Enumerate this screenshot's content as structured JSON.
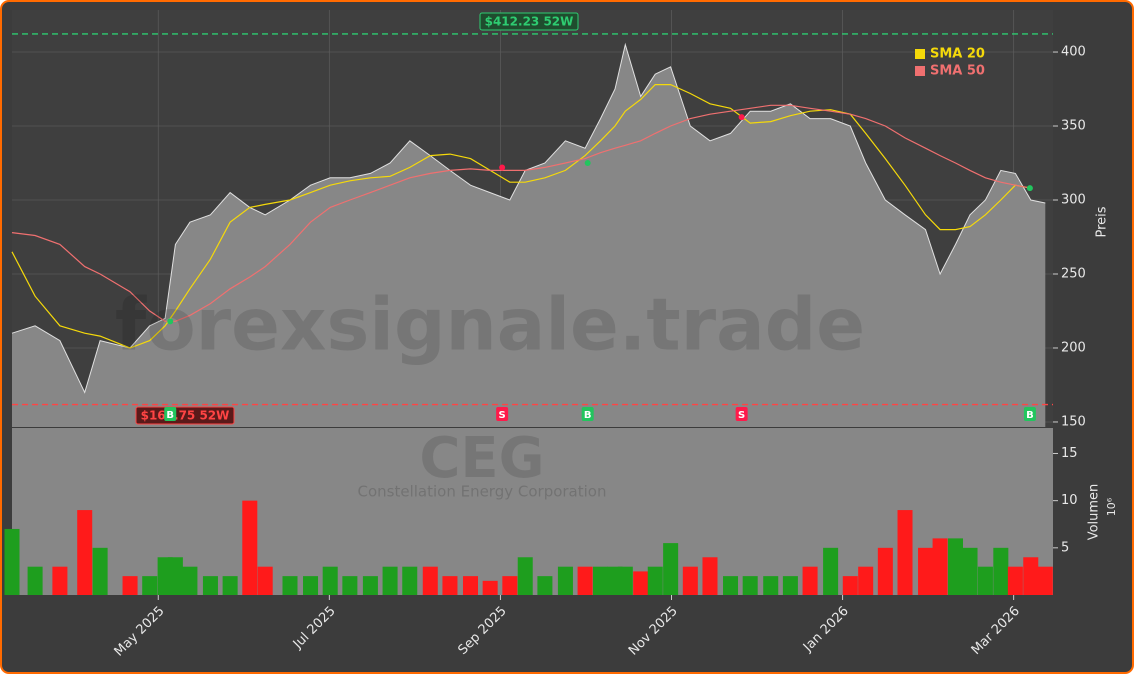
{
  "chart_data": {
    "type": "line",
    "x": [
      3.29,
      3.56,
      3.85,
      4.14,
      4.32,
      4.67,
      4.9,
      5.08,
      5.2,
      5.37,
      5.61,
      5.84,
      6.07,
      6.25,
      6.54,
      6.78,
      7.01,
      7.24,
      7.48,
      7.71,
      7.94,
      8.18,
      8.41,
      8.65,
      8.88,
      9.11,
      9.29,
      9.52,
      9.76,
      9.99,
      10.17,
      10.34,
      10.46,
      10.64,
      10.81,
      10.99,
      11.22,
      11.45,
      11.69,
      11.92,
      12.16,
      12.39,
      12.62,
      12.86,
      13.09,
      13.27,
      13.5,
      13.73,
      13.97,
      14.14,
      14.32,
      14.49,
      14.67,
      14.85,
      15.02,
      15.2,
      15.37
    ],
    "values": [
      210,
      215,
      205,
      170,
      205,
      200,
      215,
      220,
      270,
      285,
      290,
      305,
      295,
      290,
      300,
      310,
      315,
      315,
      318,
      325,
      340,
      330,
      320,
      310,
      305,
      300,
      320,
      325,
      340,
      335,
      355,
      375,
      405,
      370,
      385,
      390,
      350,
      340,
      345,
      360,
      360,
      365,
      355,
      355,
      350,
      325,
      300,
      290,
      280,
      250,
      270,
      290,
      300,
      320,
      318,
      300,
      298
    ],
    "color": "#ffffff",
    "fill": "#878787",
    "series": [
      {
        "name": "SMA 20",
        "color": "#f5d90a",
        "values": [
          265,
          235,
          215,
          210,
          208,
          200,
          205,
          215,
          225,
          240,
          260,
          285,
          295,
          297,
          300,
          305,
          310,
          313,
          315,
          316,
          322,
          330,
          331,
          328,
          320,
          312,
          312,
          315,
          320,
          330,
          340,
          350,
          360,
          368,
          378,
          378,
          372,
          365,
          362,
          352,
          353,
          357,
          360,
          361,
          358,
          345,
          328,
          310,
          290,
          280,
          280,
          282,
          290,
          300,
          310,
          308,
          null
        ]
      },
      {
        "name": "SMA 50",
        "color": "#f07070",
        "values": [
          278,
          276,
          270,
          255,
          250,
          238,
          225,
          218,
          218,
          222,
          230,
          240,
          248,
          255,
          270,
          285,
          295,
          300,
          305,
          310,
          315,
          318,
          320,
          321,
          320,
          320,
          320,
          322,
          325,
          328,
          332,
          335,
          337,
          340,
          345,
          350,
          355,
          358,
          360,
          362,
          364,
          364,
          362,
          360,
          358,
          355,
          350,
          342,
          335,
          330,
          325,
          320,
          315,
          312,
          310,
          308,
          null
        ]
      }
    ],
    "xlim": [
      3.29,
      15.46
    ],
    "xticks": [
      {
        "value": 5,
        "label": "May 2025"
      },
      {
        "value": 7,
        "label": "Jul 2025"
      },
      {
        "value": 9,
        "label": "Sep 2025"
      },
      {
        "value": 11,
        "label": "Nov 2025"
      },
      {
        "value": 13,
        "label": "Jan 2026"
      },
      {
        "value": 15,
        "label": "Mar 2026"
      }
    ],
    "ylim": [
      146.6,
      428.4
    ],
    "yticks": [
      150,
      200,
      250,
      300,
      350,
      400
    ],
    "ylabel": "Preis",
    "grid": true,
    "high": {
      "value": 412.23,
      "label": "$412.23 52W",
      "color": "#2ecc71"
    },
    "low": {
      "value": 161.75,
      "label": "$161.75 52W",
      "color": "#ff4444"
    },
    "signals": [
      {
        "x": 5.14,
        "price": 218,
        "label": "B"
      },
      {
        "x": 9.02,
        "price": 322,
        "label": "S"
      },
      {
        "x": 10.02,
        "price": 325,
        "label": "B"
      },
      {
        "x": 11.82,
        "price": 356,
        "label": "S"
      },
      {
        "x": 15.19,
        "price": 308,
        "label": "B"
      }
    ],
    "watermark": "forexsignale.trade",
    "symbol": "CEG",
    "company": "Constellation Energy Corporation",
    "legend": "top-right",
    "volume": {
      "values": [
        7,
        3,
        3,
        9,
        5,
        2,
        2,
        4,
        4,
        3,
        2,
        2,
        10,
        3,
        2,
        2,
        3,
        2,
        2,
        3,
        3,
        3,
        2,
        2,
        1.5,
        2,
        4,
        2,
        3,
        3,
        3,
        3,
        3,
        2.5,
        3,
        5.5,
        3,
        4,
        2,
        2,
        2,
        2,
        3,
        5,
        2,
        3,
        5,
        9,
        5,
        6,
        6,
        5,
        3,
        5,
        3,
        4,
        3
      ],
      "ylim": [
        0,
        17.7
      ],
      "yticks": [
        5,
        10,
        15
      ],
      "ylabel": "Volumen",
      "unit": "10⁶",
      "up_color": "#1e9e1e",
      "down_color": "#ff1a1a"
    }
  }
}
